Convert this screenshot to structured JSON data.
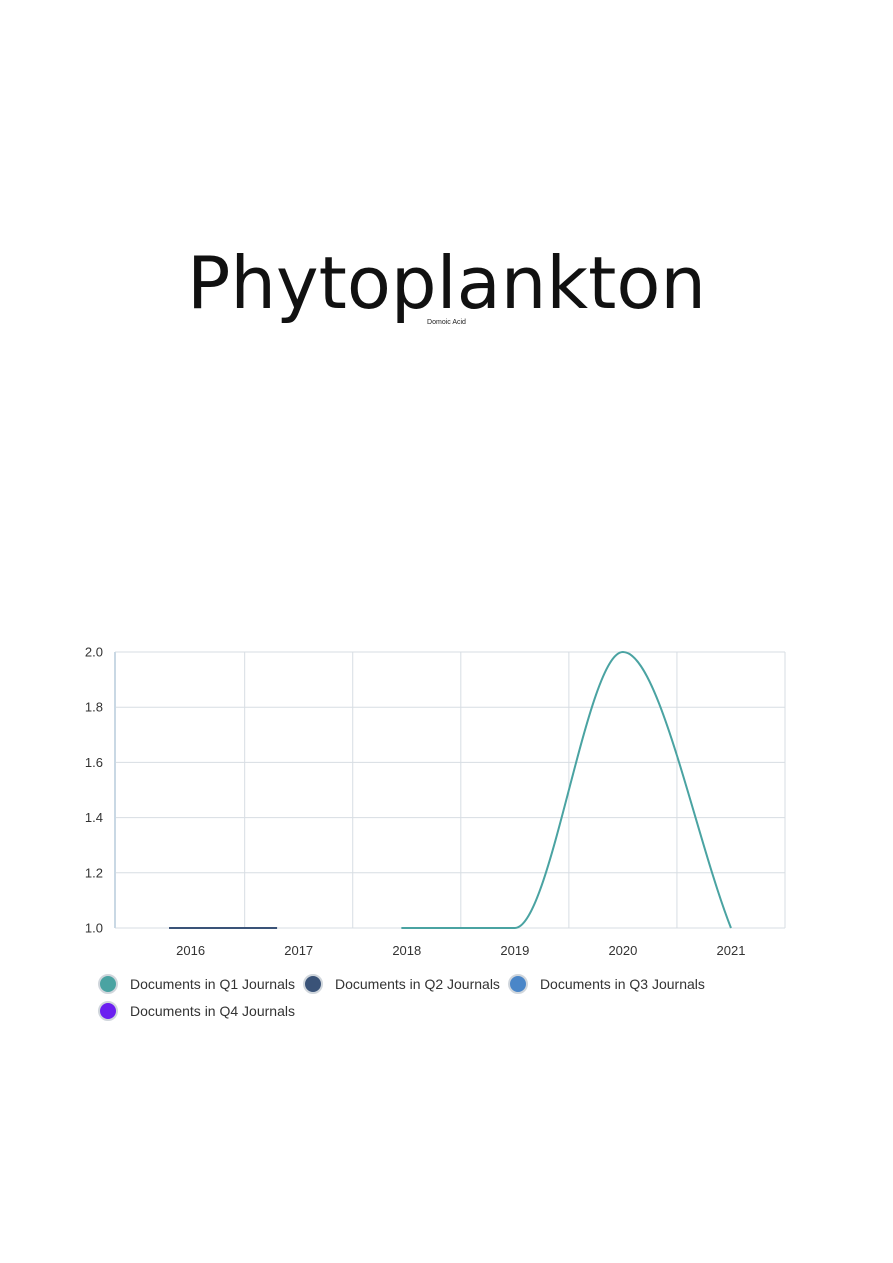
{
  "page": {
    "title": "Phytoplankton",
    "subtitle": "Domoic Acid"
  },
  "chart_data": {
    "type": "line",
    "xlim": [
      2015.3,
      2021.5
    ],
    "ylim": [
      1.0,
      2.0
    ],
    "yticks": [
      "1.0",
      "1.2",
      "1.4",
      "1.6",
      "1.8",
      "2.0"
    ],
    "xticks": [
      "2016",
      "2017",
      "2018",
      "2019",
      "2020",
      "2021"
    ],
    "grid": true,
    "legend_position": "bottom",
    "series": [
      {
        "name": "Documents in Q1 Journals",
        "color": "#4aa3a2",
        "x": [
          2017.95,
          2019,
          2020,
          2021
        ],
        "y": [
          1,
          1,
          2,
          1
        ]
      },
      {
        "name": "Documents in Q2 Journals",
        "color": "#3a5378",
        "x": [
          2015.8,
          2016.8
        ],
        "y": [
          1,
          1
        ]
      },
      {
        "name": "Documents in Q3 Journals",
        "color": "#4a86c8",
        "x": [],
        "y": []
      },
      {
        "name": "Documents in Q4 Journals",
        "color": "#6b1ff0",
        "x": [],
        "y": []
      }
    ]
  }
}
